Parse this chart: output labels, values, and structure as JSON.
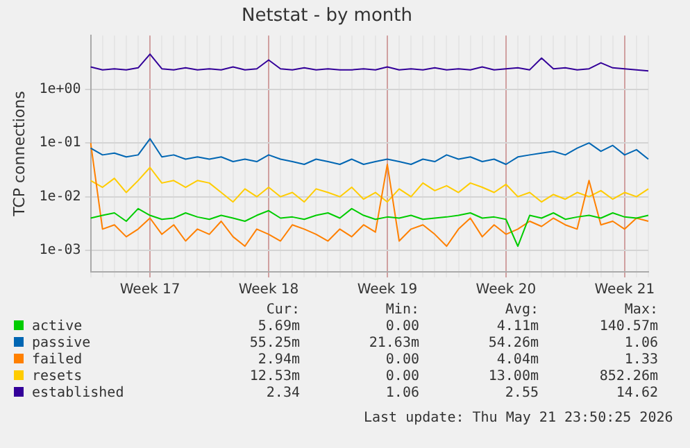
{
  "chart_data": {
    "type": "line",
    "title": "Netstat - by month",
    "ylabel": "TCP connections",
    "log": "y",
    "grid": true,
    "legend": "bottom",
    "marker": "none",
    "line_style": "solid",
    "categories": [
      null,
      null,
      null,
      null,
      null,
      "Week 17",
      null,
      null,
      null,
      null,
      null,
      null,
      null,
      null,
      null,
      "Week 18",
      null,
      null,
      null,
      null,
      null,
      null,
      null,
      null,
      null,
      "Week 19",
      null,
      null,
      null,
      null,
      null,
      null,
      null,
      null,
      null,
      "Week 20",
      null,
      null,
      null,
      null,
      null,
      null,
      null,
      null,
      null,
      "Week 21",
      null,
      null
    ],
    "ylim": [
      0.0004,
      10
    ],
    "yticks": [
      {
        "value": 0.001,
        "label": "1e-03"
      },
      {
        "value": 0.01,
        "label": "1e-02"
      },
      {
        "value": 0.1,
        "label": "1e-01"
      },
      {
        "value": 1,
        "label": "1e+00"
      }
    ],
    "series": [
      {
        "name": "active",
        "color": "#00cc00",
        "values": [
          0.004,
          0.0045,
          0.005,
          0.0035,
          0.006,
          0.0045,
          0.0038,
          0.004,
          0.005,
          0.0042,
          0.0038,
          0.0045,
          0.004,
          0.0035,
          0.0045,
          0.0055,
          0.004,
          0.0042,
          0.0038,
          0.0045,
          0.005,
          0.004,
          0.006,
          0.0045,
          0.0038,
          0.0042,
          0.004,
          0.0045,
          0.0038,
          0.004,
          0.0042,
          0.0045,
          0.005,
          0.004,
          0.0042,
          0.0038,
          0.0012,
          0.0045,
          0.004,
          0.005,
          0.0038,
          0.0042,
          0.0045,
          0.004,
          0.005,
          0.0042,
          0.004,
          0.0045
        ]
      },
      {
        "name": "passive",
        "color": "#0066b3",
        "values": [
          0.08,
          0.06,
          0.065,
          0.055,
          0.06,
          0.12,
          0.055,
          0.06,
          0.05,
          0.055,
          0.05,
          0.055,
          0.045,
          0.05,
          0.045,
          0.06,
          0.05,
          0.045,
          0.04,
          0.05,
          0.045,
          0.04,
          0.05,
          0.04,
          0.045,
          0.05,
          0.045,
          0.04,
          0.05,
          0.045,
          0.06,
          0.05,
          0.055,
          0.045,
          0.05,
          0.04,
          0.055,
          0.06,
          0.065,
          0.07,
          0.06,
          0.08,
          0.1,
          0.07,
          0.09,
          0.06,
          0.075,
          0.05
        ]
      },
      {
        "name": "failed",
        "color": "#ff8000",
        "values": [
          0.1,
          0.0025,
          0.003,
          0.0018,
          0.0025,
          0.004,
          0.002,
          0.003,
          0.0015,
          0.0025,
          0.002,
          0.0035,
          0.0018,
          0.0012,
          0.0025,
          0.002,
          0.0015,
          0.003,
          0.0025,
          0.002,
          0.0015,
          0.0025,
          0.0018,
          0.003,
          0.0022,
          0.04,
          0.0015,
          0.0025,
          0.003,
          0.002,
          0.0012,
          0.0025,
          0.004,
          0.0018,
          0.003,
          0.002,
          0.0025,
          0.0035,
          0.0028,
          0.004,
          0.003,
          0.0025,
          0.02,
          0.003,
          0.0035,
          0.0025,
          0.004,
          0.0035
        ]
      },
      {
        "name": "resets",
        "color": "#ffcc00",
        "values": [
          0.02,
          0.015,
          0.022,
          0.012,
          0.02,
          0.035,
          0.018,
          0.02,
          0.015,
          0.02,
          0.018,
          0.012,
          0.008,
          0.014,
          0.01,
          0.015,
          0.01,
          0.012,
          0.008,
          0.014,
          0.012,
          0.01,
          0.015,
          0.009,
          0.012,
          0.008,
          0.014,
          0.01,
          0.018,
          0.013,
          0.016,
          0.012,
          0.018,
          0.015,
          0.012,
          0.017,
          0.01,
          0.012,
          0.008,
          0.011,
          0.009,
          0.012,
          0.01,
          0.013,
          0.009,
          0.012,
          0.01,
          0.014
        ]
      },
      {
        "name": "established",
        "color": "#330099",
        "values": [
          2.6,
          2.3,
          2.4,
          2.3,
          2.5,
          4.5,
          2.4,
          2.3,
          2.5,
          2.3,
          2.4,
          2.3,
          2.6,
          2.3,
          2.4,
          3.5,
          2.4,
          2.3,
          2.5,
          2.3,
          2.4,
          2.3,
          2.3,
          2.4,
          2.3,
          2.6,
          2.3,
          2.4,
          2.3,
          2.5,
          2.3,
          2.4,
          2.3,
          2.6,
          2.3,
          2.4,
          2.5,
          2.3,
          3.8,
          2.4,
          2.5,
          2.3,
          2.4,
          3.1,
          2.5,
          2.4,
          2.3,
          2.2
        ]
      }
    ],
    "annotations": [
      "Cur:",
      "Min:",
      "Avg:",
      "Max:",
      "5.69m",
      "0.00",
      "4.11m",
      "140.57m",
      "55.25m",
      "21.63m",
      "54.26m",
      "1.06",
      "2.94m",
      "0.00",
      "4.04m",
      "1.33",
      "12.53m",
      "0.00",
      "13.00m",
      "852.26m",
      "2.34",
      "1.06",
      "2.55",
      "14.62",
      "Last update: Thu May 21 23:50:25 2026"
    ]
  }
}
